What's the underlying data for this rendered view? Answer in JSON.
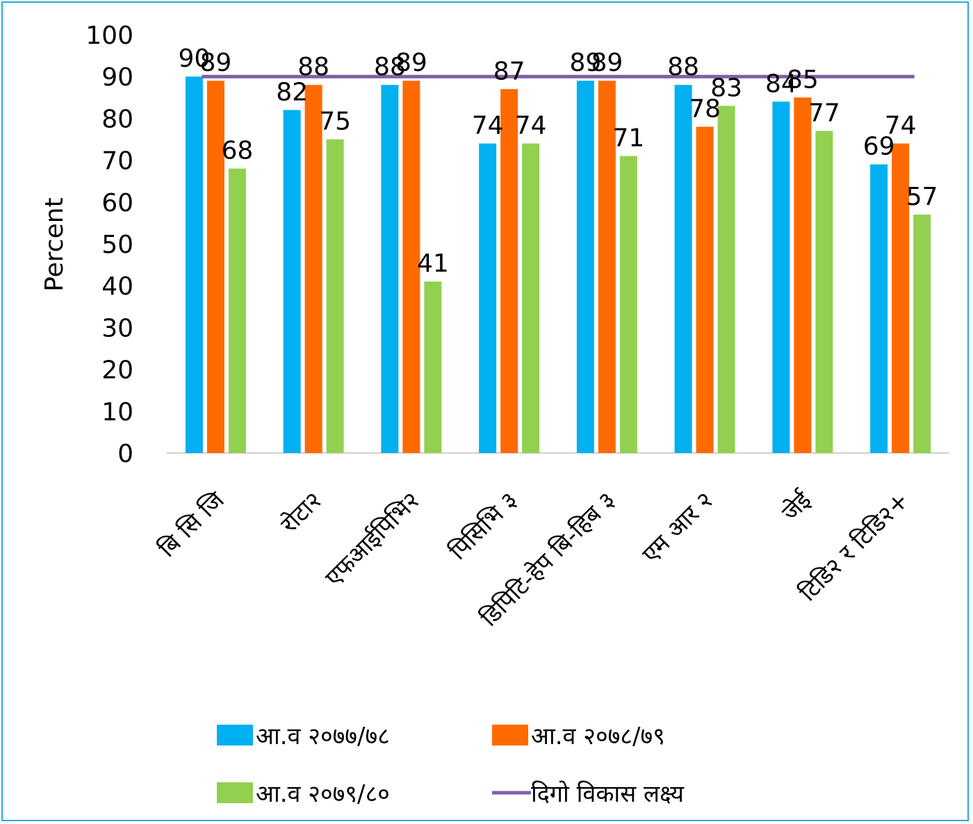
{
  "chart_data": {
    "type": "bar",
    "ylabel": "Percent",
    "ylim": [
      0,
      100
    ],
    "yticks": [
      0,
      10,
      20,
      30,
      40,
      50,
      60,
      70,
      80,
      90,
      100
    ],
    "categories": [
      "बि सि जि",
      "रोटा२",
      "एफआईपिभि२",
      "पिसिभि ३",
      "डिपिटि-हेप बि-हिब ३",
      "एम आर २",
      "जेई",
      "टिडि२ र टिडि२+"
    ],
    "series": [
      {
        "name": "आ.व २०७७/७८",
        "color": "#00b0f0",
        "values": [
          90,
          82,
          88,
          74,
          89,
          88,
          84,
          69
        ]
      },
      {
        "name": "आ.व २०७८/७९",
        "color": "#ff6a00",
        "values": [
          89,
          88,
          89,
          87,
          89,
          78,
          85,
          74
        ]
      },
      {
        "name": "आ.व २०७९/८०",
        "color": "#92d050",
        "values": [
          68,
          75,
          41,
          74,
          71,
          83,
          77,
          57
        ]
      }
    ],
    "target": {
      "name": "दिगो विकास लक्ष्य",
      "color": "#7f5fa8",
      "value": 90
    },
    "legend_position": "bottom",
    "grid": false
  }
}
